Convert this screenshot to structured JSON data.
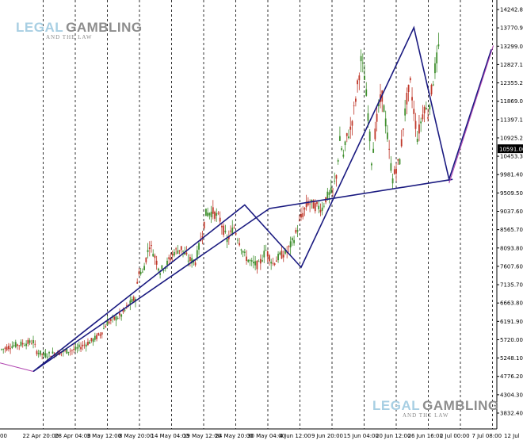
{
  "watermark": {
    "word1": "LEGAL",
    "word2": "GAMBLING",
    "tagline": "AND THE LAW",
    "color_light": "#a8cfe3",
    "color_dark": "#8d8d8d"
  },
  "colors": {
    "background": "#ffffff",
    "grid": "#000000",
    "candle_up": "#3f8f2e",
    "candle_down": "#c0392b",
    "pattern_line": "#1a1a80",
    "projection_line": "#b044b0",
    "current_price_bg": "#000000",
    "current_price_fg": "#ffffff"
  },
  "chart_data": {
    "type": "candlestick",
    "title": "",
    "xlabel": "",
    "ylabel": "",
    "ylim": [
      3832.4,
      14242.8
    ],
    "grid": "vertical dashed",
    "y_ticks": [
      "14242.80",
      "13770.90",
      "13299.00",
      "12827.10",
      "12355.20",
      "11869.00",
      "11397.10",
      "10925.20",
      "10453.30",
      "9981.40",
      "9509.50",
      "9037.60",
      "8565.70",
      "8093.80",
      "7607.60",
      "7135.70",
      "6663.80",
      "6191.90",
      "5720.00",
      "5248.10",
      "4776.20",
      "4304.30",
      "3832.40"
    ],
    "current_price": "10591.00",
    "x_ticks": [
      "00",
      "22 Apr 20:00",
      "28 Apr 04:00",
      "3 May 12:00",
      "8 May 20:00",
      "14 May 04:00",
      "19 May 12:00",
      "24 May 20:00",
      "30 May 04:00",
      "4 Jun 12:00",
      "9 Jun 20:00",
      "15 Jun 04:00",
      "20 Jun 12:00",
      "26 Jun 16:00",
      "2 Jul 00:00",
      "7 Jul 08:00",
      "12 Jul"
    ],
    "price_path": [
      [
        0,
        5350
      ],
      [
        3,
        5450
      ],
      [
        6,
        5500
      ],
      [
        9,
        5550
      ],
      [
        10,
        5300
      ],
      [
        12,
        5200
      ],
      [
        15,
        5250
      ],
      [
        18,
        5300
      ],
      [
        21,
        5350
      ],
      [
        23,
        5450
      ],
      [
        26,
        5600
      ],
      [
        28,
        5750
      ],
      [
        30,
        6050
      ],
      [
        32,
        6150
      ],
      [
        34,
        6250
      ],
      [
        36,
        6500
      ],
      [
        38,
        6700
      ],
      [
        39,
        7400
      ],
      [
        40,
        7350
      ],
      [
        42,
        8100
      ],
      [
        43,
        7900
      ],
      [
        45,
        7400
      ],
      [
        47,
        7600
      ],
      [
        49,
        7900
      ],
      [
        51,
        8000
      ],
      [
        53,
        7700
      ],
      [
        55,
        7650
      ],
      [
        57,
        8400
      ],
      [
        58,
        8900
      ],
      [
        60,
        8950
      ],
      [
        62,
        8750
      ],
      [
        64,
        8200
      ],
      [
        66,
        8550
      ],
      [
        67,
        8300
      ],
      [
        69,
        7800
      ],
      [
        71,
        7600
      ],
      [
        73,
        7550
      ],
      [
        75,
        7950
      ],
      [
        77,
        7600
      ],
      [
        79,
        7800
      ],
      [
        81,
        7900
      ],
      [
        83,
        8250
      ],
      [
        85,
        8800
      ],
      [
        87,
        9200
      ],
      [
        89,
        9100
      ],
      [
        91,
        9050
      ],
      [
        92,
        9300
      ],
      [
        94,
        9500
      ],
      [
        95,
        9900
      ],
      [
        96,
        10800
      ],
      [
        97,
        10400
      ],
      [
        98,
        10900
      ],
      [
        99,
        11100
      ],
      [
        100,
        11600
      ],
      [
        102,
        12900
      ],
      [
        103,
        12500
      ],
      [
        104,
        11500
      ],
      [
        105,
        10300
      ],
      [
        106,
        11000
      ],
      [
        107,
        11700
      ],
      [
        108,
        12000
      ],
      [
        109,
        11300
      ],
      [
        110,
        10500
      ],
      [
        111,
        9800
      ],
      [
        112,
        10100
      ],
      [
        113,
        10300
      ],
      [
        114,
        11200
      ],
      [
        115,
        11900
      ],
      [
        116,
        12300
      ],
      [
        117,
        11600
      ],
      [
        118,
        10900
      ],
      [
        119,
        11300
      ],
      [
        120,
        11700
      ],
      [
        121,
        11500
      ],
      [
        122,
        12100
      ],
      [
        123,
        12700
      ],
      [
        124,
        13200
      ]
    ],
    "pattern_lines": [
      {
        "points": [
          [
            9,
            4776.2
          ],
          [
            76,
            9037.6
          ],
          [
            128,
            9800
          ]
        ],
        "style": "trendline"
      },
      {
        "points": [
          [
            9,
            4776.2
          ],
          [
            69,
            9130
          ],
          [
            85,
            7500
          ],
          [
            117,
            13770.9
          ],
          [
            127,
            9800
          ],
          [
            139,
            13200
          ]
        ],
        "style": "zigzag"
      }
    ]
  }
}
